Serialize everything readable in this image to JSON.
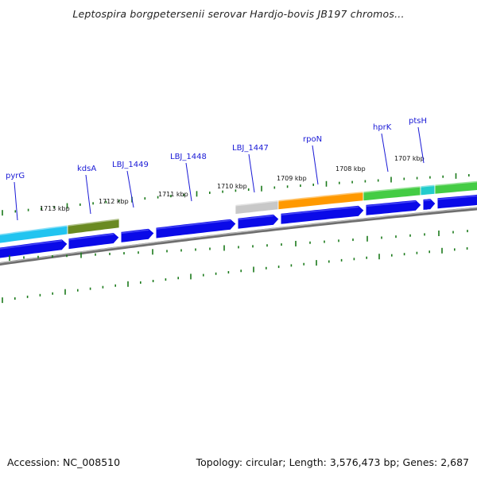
{
  "title": "Leptospira borgpetersenii serovar Hardjo-bovis JB197 chromos...",
  "footer": {
    "accession": "Accession: NC_008510",
    "summary": "Topology: circular; Length: 3,576,473 bp; Genes: 2,687"
  },
  "colors": {
    "cds": "#0a0ae8",
    "backbone": "#888888",
    "tick": "#1a7a1a",
    "gene_label": "#1a1ad6",
    "feature_cyan": "#22c4f0",
    "feature_olive": "#6a8a22",
    "feature_gray": "#c8c8c8",
    "feature_orange": "#ff9900",
    "feature_green": "#44cc44",
    "feature_teal": "#22cccc"
  },
  "kbp_ticks": [
    "1713 kbp",
    "1712 kbp",
    "1711 kbp",
    "1710 kbp",
    "1709 kbp",
    "1708 kbp",
    "1707 kbp"
  ],
  "gene_labels": [
    "pyrG",
    "kdsA",
    "LBJ_1449",
    "LBJ_1448",
    "LBJ_1447",
    "rpoN",
    "hprK",
    "ptsH"
  ],
  "features": [
    {
      "name": "cyan",
      "color_key": "feature_cyan"
    },
    {
      "name": "olive",
      "color_key": "feature_olive"
    },
    {
      "name": "gray",
      "color_key": "feature_gray"
    },
    {
      "name": "orange",
      "color_key": "feature_orange"
    },
    {
      "name": "green",
      "color_key": "feature_green"
    },
    {
      "name": "teal",
      "color_key": "feature_teal"
    },
    {
      "name": "green2",
      "color_key": "feature_green"
    }
  ]
}
